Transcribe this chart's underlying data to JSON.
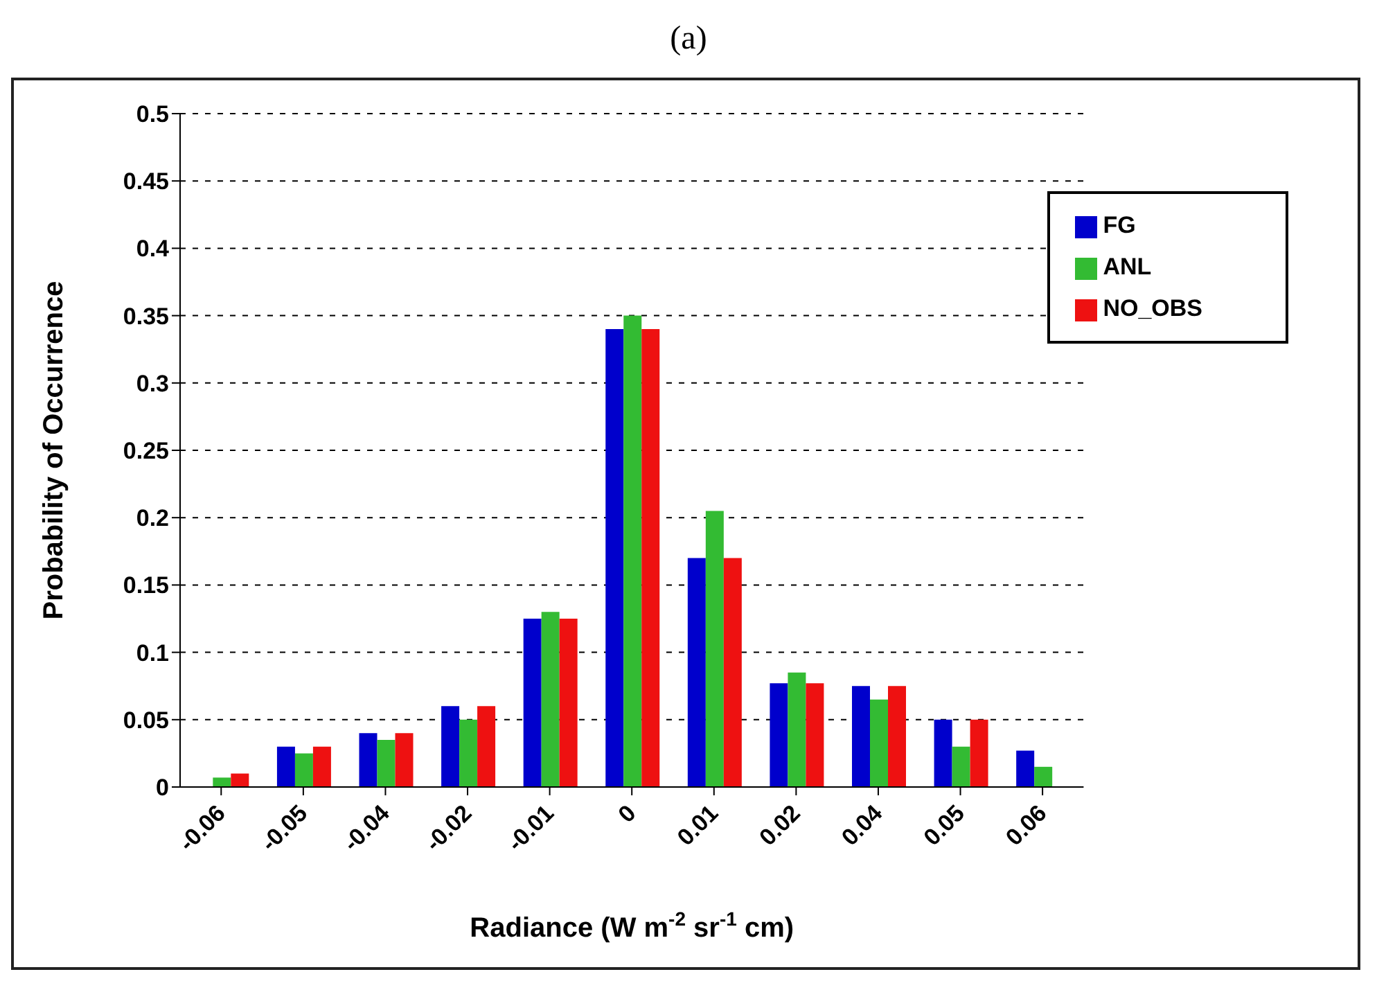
{
  "chart_data": {
    "type": "bar",
    "title": "(a)",
    "xlabel": "Radiance  (W m$^{-2}$ sr$^{-1}$ cm)",
    "ylabel": "Probability of Occurrence",
    "categories": [
      "-0.06",
      "-0.05",
      "-0.04",
      "-0.02",
      "-0.01",
      "0",
      "0.01",
      "0.02",
      "0.04",
      "0.05",
      "0.06"
    ],
    "series": [
      {
        "name": "FG",
        "color": "#0000cc",
        "values": [
          null,
          0.03,
          0.04,
          0.06,
          0.125,
          0.34,
          0.17,
          0.077,
          0.075,
          0.05,
          0.027
        ]
      },
      {
        "name": "ANL",
        "color": "#33bb33",
        "values": [
          0.007,
          0.025,
          0.035,
          0.05,
          0.13,
          0.35,
          0.205,
          0.085,
          0.065,
          0.03,
          0.015
        ]
      },
      {
        "name": "NO_OBS",
        "color": "#ee1111",
        "values": [
          0.01,
          0.03,
          0.04,
          0.06,
          0.125,
          0.34,
          0.17,
          0.077,
          0.075,
          0.05,
          null
        ]
      }
    ],
    "ylim": [
      0,
      0.5
    ],
    "yticks": [
      0,
      0.05,
      0.1,
      0.15,
      0.2,
      0.25,
      0.3,
      0.35,
      0.4,
      0.45,
      0.5
    ],
    "grid": "y",
    "legend": "top right"
  }
}
